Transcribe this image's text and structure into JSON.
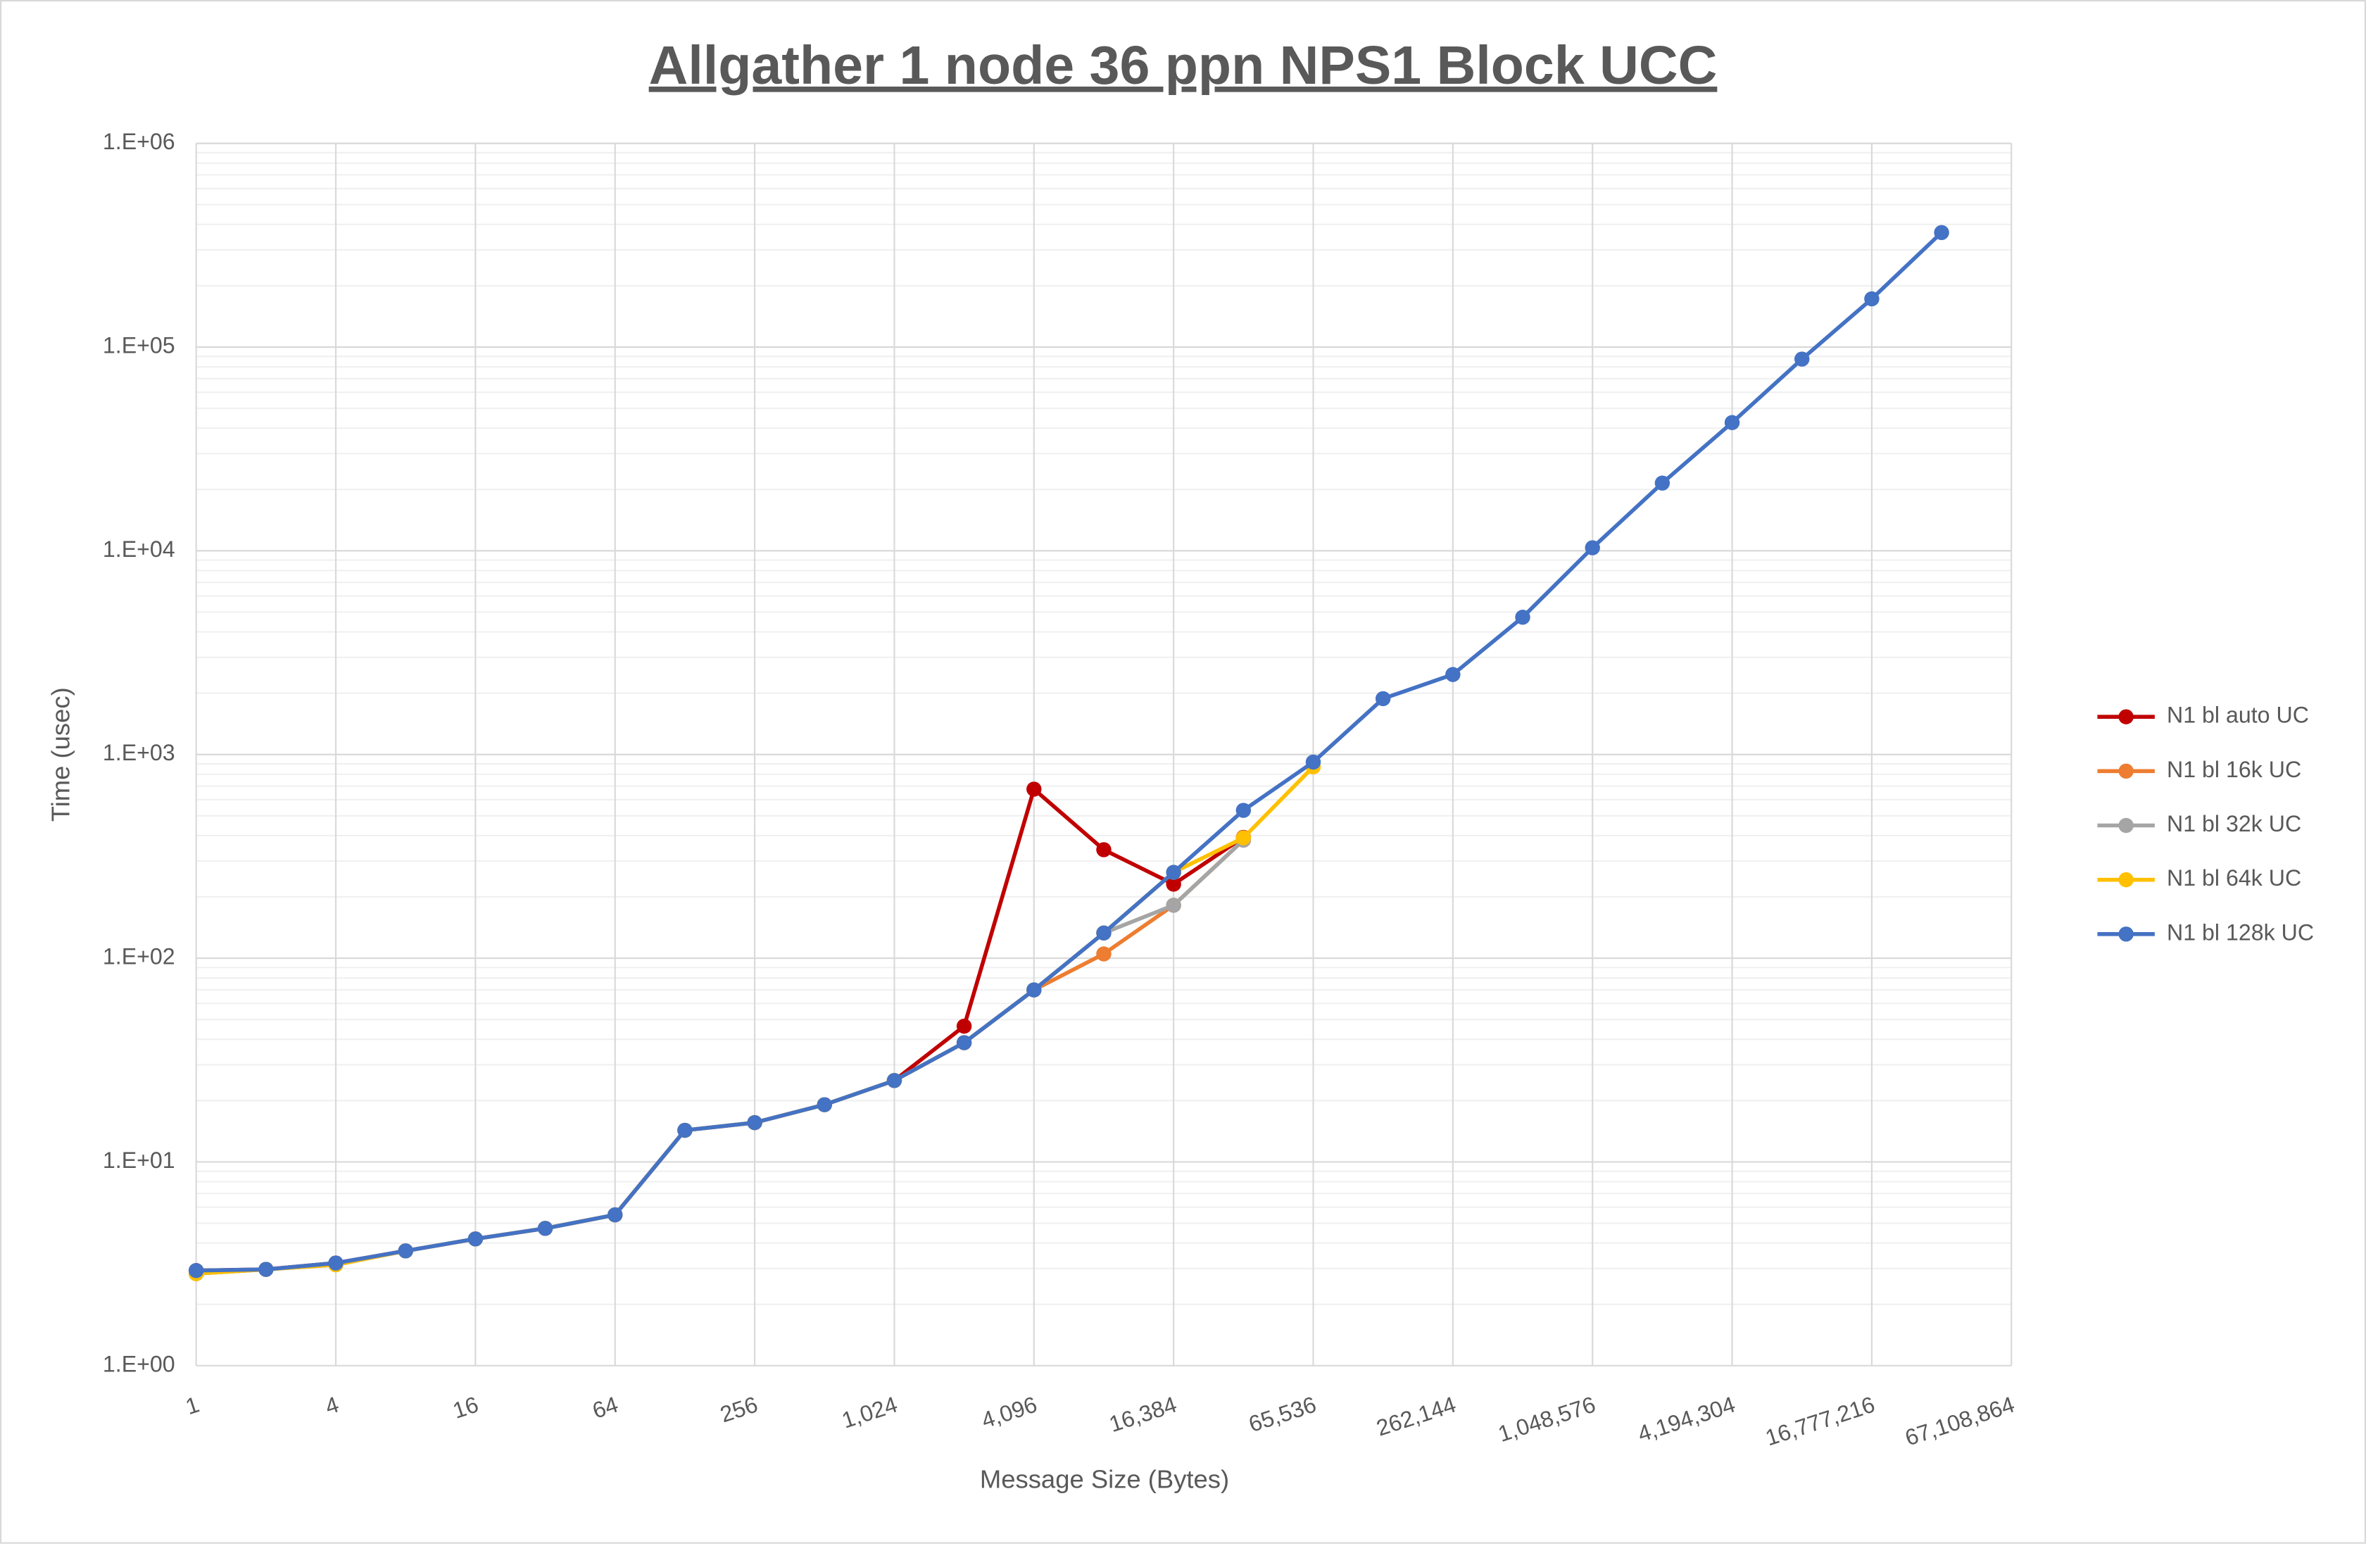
{
  "chart_data": {
    "type": "line",
    "title": "Allgather 1 node 36 ppn NPS1 Block UCC",
    "x_label": "Message Size (Bytes)",
    "y_label": "Time (usec)",
    "x": [
      1,
      2,
      4,
      8,
      16,
      32,
      64,
      128,
      256,
      512,
      1024,
      2048,
      4096,
      8192,
      16384,
      32768,
      65536,
      131072,
      262144,
      524288,
      1048576,
      2097152,
      4194304,
      8388608,
      16777216,
      33554432
    ],
    "xlim": [
      1,
      67108864
    ],
    "x_log_base": 2,
    "xticks": [
      1,
      4,
      16,
      64,
      256,
      {
        "value": 1024,
        "label": "1,024"
      },
      {
        "value": 4096,
        "label": "4,096"
      },
      {
        "value": 16384,
        "label": "16,384"
      },
      {
        "value": 65536,
        "label": "65,536"
      },
      {
        "value": 262144,
        "label": "262,144"
      },
      {
        "value": 1048576,
        "label": "1,048,576"
      },
      {
        "value": 4194304,
        "label": "4,194,304"
      },
      {
        "value": 16777216,
        "label": "16,777,216"
      },
      {
        "value": 67108864,
        "label": "67,108,864"
      }
    ],
    "ylim": [
      1,
      1000000
    ],
    "y_log_base": 10,
    "yticks": [
      {
        "value": 1,
        "label": "1.E+00"
      },
      {
        "value": 10,
        "label": "1.E+01"
      },
      {
        "value": 100,
        "label": "1.E+02"
      },
      {
        "value": 1000,
        "label": "1.E+03"
      },
      {
        "value": 10000,
        "label": "1.E+04"
      },
      {
        "value": 100000,
        "label": "1.E+05"
      },
      {
        "value": 1000000,
        "label": "1.E+06"
      }
    ],
    "grid": true,
    "minor_grid": true,
    "legend": "right",
    "series": [
      {
        "name": "N1 bl auto UC",
        "color": "#c00000",
        "values": [
          2.93,
          2.97,
          3.19,
          3.66,
          4.19,
          4.72,
          5.5,
          14.3,
          15.6,
          19.1,
          25.1,
          46.4,
          676,
          341,
          231,
          392,
          null,
          null,
          null,
          null,
          null,
          null,
          null,
          null,
          null,
          null
        ]
      },
      {
        "name": "N1 bl 16k UC",
        "color": "#ed7d31",
        "values": [
          2.83,
          2.97,
          3.13,
          3.66,
          4.19,
          4.72,
          5.5,
          14.3,
          15.6,
          19.1,
          25.1,
          38.5,
          69.9,
          105,
          182,
          380,
          null,
          null,
          null,
          null,
          null,
          null,
          null,
          null,
          null,
          null
        ]
      },
      {
        "name": "N1 bl 32k UC",
        "color": "#a5a5a5",
        "values": [
          2.83,
          2.97,
          3.13,
          3.66,
          4.19,
          4.72,
          5.5,
          14.3,
          15.6,
          19.1,
          25.1,
          38.5,
          69.9,
          133,
          182,
          380,
          null,
          null,
          null,
          null,
          null,
          null,
          null,
          null,
          null,
          null
        ]
      },
      {
        "name": "N1 bl 64k UC",
        "color": "#ffc000",
        "values": [
          2.83,
          2.97,
          3.13,
          3.66,
          4.19,
          4.72,
          5.5,
          14.3,
          15.6,
          19.1,
          25.1,
          38.5,
          69.9,
          133,
          264,
          390,
          870,
          null,
          null,
          null,
          null,
          null,
          null,
          null,
          null,
          null
        ]
      },
      {
        "name": "N1 bl 128k UC",
        "color": "#4472c4",
        "values": [
          2.93,
          2.97,
          3.19,
          3.66,
          4.19,
          4.72,
          5.5,
          14.3,
          15.6,
          19.1,
          25.1,
          38.5,
          69.9,
          133,
          264,
          532,
          918,
          1880,
          2470,
          4720,
          10350,
          21500,
          42600,
          87300,
          172500,
          365000
        ]
      }
    ]
  }
}
